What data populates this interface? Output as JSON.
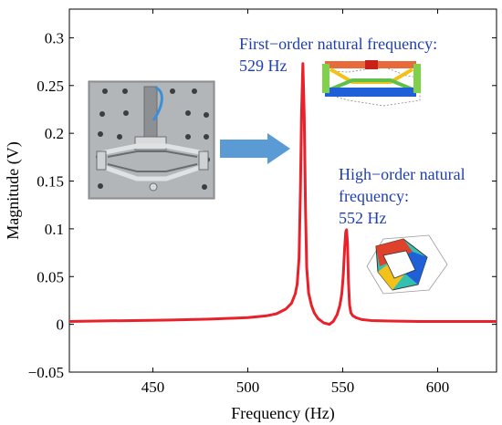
{
  "chart_data": {
    "type": "line",
    "xlabel": "Frequency (Hz)",
    "ylabel": "Magnitude (V)",
    "xlim": [
      406,
      631
    ],
    "ylim": [
      -0.05,
      0.33
    ],
    "x_ticks": [
      450,
      500,
      550,
      600
    ],
    "y_ticks": [
      -0.05,
      0,
      0.05,
      0.1,
      0.15,
      0.2,
      0.25,
      0.3
    ],
    "y_tick_labels": [
      "−0.05",
      "0",
      "0.05",
      "0.1",
      "0.15",
      "0.2",
      "0.25",
      "0.3"
    ],
    "grid": false,
    "line_color": "#e8212a",
    "series": [
      {
        "x": [
          406,
          420,
          440,
          460,
          480,
          500,
          510,
          515,
          520,
          523,
          525,
          526,
          527,
          527.7,
          528.3,
          529,
          529.7,
          530.4,
          531,
          532,
          533.5,
          535,
          537,
          540,
          543,
          545,
          547,
          548.5,
          549.5,
          550.3,
          551,
          551.6,
          552,
          552.5,
          553,
          553.6,
          554.3,
          555.3,
          557,
          560,
          565,
          575,
          590,
          610,
          631
        ],
        "y": [
          0.003,
          0.0035,
          0.004,
          0.0045,
          0.0055,
          0.007,
          0.009,
          0.011,
          0.016,
          0.022,
          0.032,
          0.042,
          0.07,
          0.14,
          0.22,
          0.273,
          0.22,
          0.12,
          0.06,
          0.033,
          0.02,
          0.012,
          0.006,
          0.0015,
          0.0,
          0.003,
          0.01,
          0.02,
          0.032,
          0.052,
          0.08,
          0.097,
          0.099,
          0.085,
          0.045,
          0.02,
          0.012,
          0.009,
          0.007,
          0.005,
          0.004,
          0.0035,
          0.003,
          0.003,
          0.003
        ]
      }
    ],
    "annotations": [
      {
        "lines": [
          "First−order natural frequency:",
          "529 Hz"
        ],
        "color": "#1f3fb0"
      },
      {
        "lines": [
          "High−order natural",
          "frequency:",
          "552 Hz"
        ],
        "color": "#1f3fb0"
      }
    ],
    "arrow_color": "#5b9bd5"
  }
}
